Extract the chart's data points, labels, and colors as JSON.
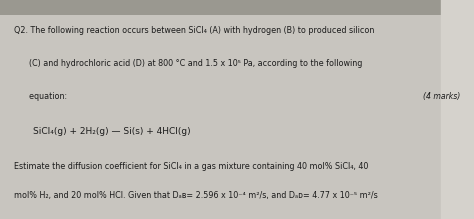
{
  "background_color": "#c8c5bf",
  "paper_color": "#edeae4",
  "top_border_color": "#9a9890",
  "line1": "Q2. The following reaction occurs between SiCl₄ (A) with hydrogen (B) to produced silicon",
  "line2": "      (C) and hydrochloric acid (D) at 800 °C and 1.5 x 10⁵ Pa, according to the following",
  "line3": "      equation:",
  "marks_text": "(4 marks)",
  "equation": "SiCl₄(g) + 2H₂(g) — Si(s) + 4HCl(g)",
  "est_line1": "Estimate the diffusion coefficient for SiCl₄ in a gas mixture containing 40 mol% SiCl₄, 40",
  "est_line2": "mol% H₂, and 20 mol% HCl. Given that Dₐʙ= 2.596 x 10⁻⁴ m²/s, and Dₐᴅ= 4.77 x 10⁻⁵ m²/s",
  "font_size_body": 5.8,
  "font_size_equation": 6.5,
  "font_size_marks": 5.6,
  "text_color": "#1c1c1c"
}
